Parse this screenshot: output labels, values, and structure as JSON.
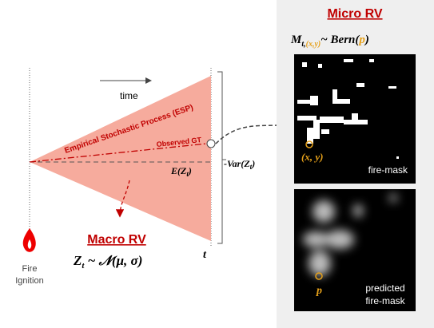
{
  "left": {
    "time": "time",
    "esp": "Empirical Stochastic Process (ESP)",
    "observed": "Observed GT",
    "expectation": {
      "base": "E(Z",
      "sub": "t",
      "end": ")"
    },
    "variance": {
      "base": "-Var(Z",
      "sub": "t",
      "end": ")"
    },
    "t_label": "t",
    "fire": [
      "Fire",
      "Ignition"
    ],
    "macro": {
      "title": "Macro RV",
      "base": "Z",
      "sub": "t",
      "rest": " ~ 𝒩(μ, σ)"
    }
  },
  "right": {
    "micro": {
      "title": "Micro RV",
      "base": "M",
      "sub1": "t,",
      "sub2": "(x,y)",
      "mid": "~ Bern(",
      "p": "p",
      "end": ")"
    },
    "mask_point": "(x, y)",
    "mask_label": "fire-mask",
    "pred_point": "p",
    "pred_label": [
      "predicted",
      "fire-mask"
    ]
  }
}
